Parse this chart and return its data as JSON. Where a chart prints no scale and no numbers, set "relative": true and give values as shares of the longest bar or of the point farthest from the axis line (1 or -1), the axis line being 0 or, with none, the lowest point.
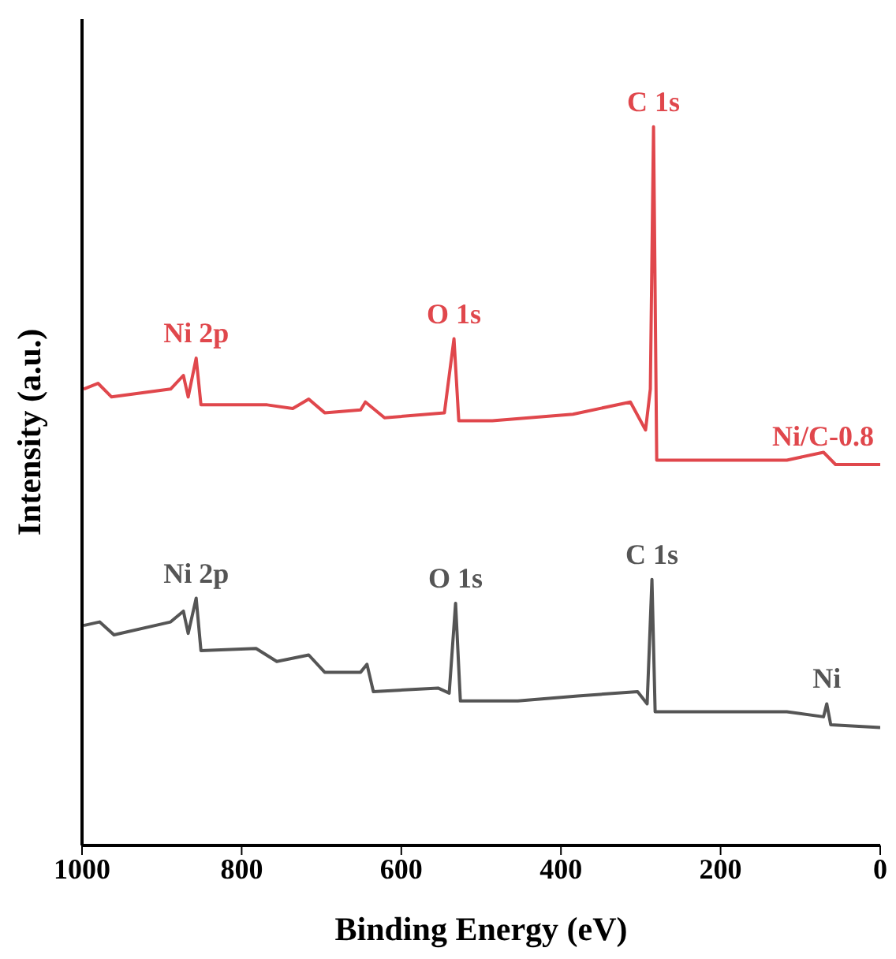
{
  "chart_data": {
    "type": "line",
    "relative": true,
    "xlabel": "Binding Energy (eV)",
    "ylabel": "Intensity (a.u.)",
    "xlim": [
      1000,
      0
    ],
    "xticks": [
      1000,
      800,
      600,
      400,
      200,
      0
    ],
    "grid": false,
    "legend": false,
    "marker": "none",
    "line_style": "solid",
    "series": [
      {
        "name": "Ni/C-0.8",
        "color": "#e0474c",
        "x": [
          998,
          980,
          963,
          889,
          873,
          867,
          857,
          851,
          768,
          736,
          716,
          696,
          651,
          645,
          621,
          546,
          534,
          528,
          486,
          385,
          313,
          294,
          288,
          284,
          280,
          117,
          71,
          56,
          0
        ],
        "values": [
          0.635,
          0.643,
          0.624,
          0.635,
          0.654,
          0.624,
          0.678,
          0.613,
          0.613,
          0.608,
          0.621,
          0.602,
          0.606,
          0.617,
          0.595,
          0.602,
          0.705,
          0.591,
          0.591,
          0.6,
          0.617,
          0.578,
          0.635,
          1,
          0.536,
          0.536,
          0.547,
          0.53,
          0.53
        ]
      },
      {
        "color": "#555555",
        "x": [
          998,
          978,
          960,
          889,
          873,
          867,
          857,
          851,
          782,
          756,
          716,
          696,
          651,
          643,
          635,
          554,
          540,
          532,
          526,
          454,
          379,
          304,
          292,
          286,
          282,
          117,
          71,
          67,
          62,
          0
        ],
        "values": [
          0.306,
          0.311,
          0.293,
          0.311,
          0.326,
          0.295,
          0.344,
          0.271,
          0.274,
          0.256,
          0.265,
          0.241,
          0.241,
          0.252,
          0.214,
          0.219,
          0.212,
          0.337,
          0.201,
          0.201,
          0.208,
          0.214,
          0.197,
          0.37,
          0.186,
          0.186,
          0.179,
          0.197,
          0.168,
          0.164
        ]
      }
    ],
    "annotations": [
      {
        "text": "C 1s",
        "x": 284,
        "y": 1
      },
      {
        "text": "O 1s",
        "x": 534,
        "y": 0.705
      },
      {
        "text": "Ni 2p",
        "x": 857,
        "y": 0.678
      },
      {
        "text": "Ni 2p",
        "x": 857,
        "y": 0.344
      },
      {
        "text": "O 1s",
        "x": 532,
        "y": 0.337
      },
      {
        "text": "C 1s",
        "x": 286,
        "y": 0.37
      },
      {
        "text": "Ni",
        "x": 67,
        "y": 0.197
      }
    ]
  }
}
